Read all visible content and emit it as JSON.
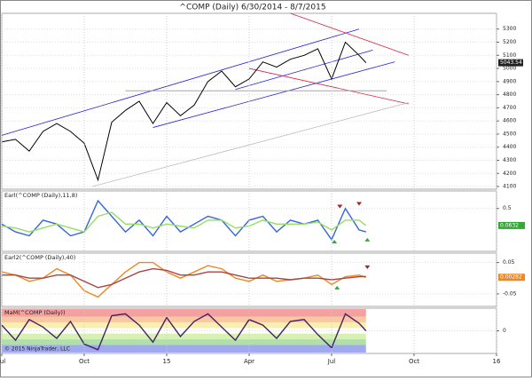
{
  "copyright": "© 2015 NinjaTrader, LLC",
  "chart_data": [
    {
      "type": "line",
      "title": "^COMP (Daily)  6/30/2014 - 8/7/2015",
      "x": [
        0,
        0.5,
        1,
        1.5,
        2,
        2.5,
        3,
        3.5,
        4,
        4.5,
        5,
        5.5,
        6,
        6.5,
        7,
        7.5,
        8,
        8.5,
        9,
        9.5,
        10,
        10.5,
        11,
        11.5,
        12,
        12.5,
        13,
        13.25
      ],
      "series": [
        {
          "color": "#000000",
          "values": [
            4440,
            4460,
            4370,
            4520,
            4580,
            4520,
            4430,
            4150,
            4590,
            4680,
            4750,
            4580,
            4740,
            4640,
            4720,
            4900,
            4980,
            4860,
            4920,
            5050,
            5010,
            5070,
            5100,
            5150,
            4920,
            5200,
            5100,
            5043.54
          ]
        }
      ],
      "last_value": 5043.54,
      "xlim": [
        0,
        18
      ],
      "ylim": [
        4080,
        5420
      ],
      "yticks": [
        4100,
        4200,
        4300,
        4400,
        4500,
        4600,
        4700,
        4800,
        4900,
        5000,
        5100,
        5200,
        5300
      ],
      "trendlines": [
        {
          "x": [
            0,
            13
          ],
          "y": [
            4490,
            5300
          ],
          "color": "#2222dd"
        },
        {
          "x": [
            5.5,
            14.3
          ],
          "y": [
            4550,
            5050
          ],
          "color": "#2222dd"
        },
        {
          "x": [
            8.5,
            13.5
          ],
          "y": [
            4840,
            5140
          ],
          "color": "#2222dd"
        },
        {
          "x": [
            10.5,
            14.8
          ],
          "y": [
            5420,
            5100
          ],
          "color": "#dd2244"
        },
        {
          "x": [
            9,
            14.8
          ],
          "y": [
            5000,
            4730
          ],
          "color": "#dd2244"
        },
        {
          "x": [
            4.5,
            14
          ],
          "y": [
            4830,
            4830
          ],
          "color": "#999999"
        },
        {
          "x": [
            3.3,
            14.8
          ],
          "y": [
            4100,
            4740
          ],
          "color": "#bbbbbb"
        }
      ]
    },
    {
      "type": "line",
      "title": "Earl(^COMP (Daily),11,8)",
      "x": [
        0,
        0.5,
        1,
        1.5,
        2,
        2.5,
        3,
        3.5,
        4,
        4.5,
        5,
        5.5,
        6,
        6.5,
        7,
        7.5,
        8,
        8.5,
        9,
        9.5,
        10,
        10.5,
        11,
        11.5,
        12,
        12.5,
        13,
        13.25
      ],
      "series": [
        {
          "color": "#3366dd",
          "values": [
            0.1,
            -0.1,
            -0.2,
            0.2,
            0.1,
            -0.2,
            -0.1,
            0.7,
            0.3,
            -0.1,
            0.2,
            -0.2,
            0.3,
            -0.1,
            0.1,
            0.3,
            0.2,
            -0.2,
            0.2,
            0.3,
            -0.1,
            0.2,
            0.1,
            0.2,
            -0.3,
            0.5,
            -0.05,
            -0.1
          ]
        },
        {
          "color": "#99dd66",
          "values": [
            0.05,
            0,
            -0.1,
            0,
            0.1,
            0,
            -0.1,
            0.3,
            0.4,
            0.1,
            0.1,
            0,
            0.1,
            0.05,
            0,
            0.2,
            0.2,
            0,
            0.05,
            0.2,
            0.1,
            0.1,
            0.1,
            0.15,
            -0.05,
            0.2,
            0.2,
            0.0632
          ]
        }
      ],
      "last_value": 0.0632,
      "markers": [
        {
          "x": 12.3,
          "y": 0.55,
          "color": "#aa2222",
          "dir": "down"
        },
        {
          "x": 13,
          "y": 0.62,
          "color": "#aa2222",
          "dir": "down"
        },
        {
          "x": 12.1,
          "y": -0.35,
          "color": "#33aa33",
          "dir": "up"
        },
        {
          "x": 13.3,
          "y": -0.3,
          "color": "#33aa33",
          "dir": "up"
        }
      ],
      "xlim": [
        0,
        18
      ],
      "ylim": [
        -0.6,
        0.95
      ],
      "yticks": [
        0.5
      ]
    },
    {
      "type": "line",
      "title": "Earl2(^COMP (Daily),40)",
      "x": [
        0,
        0.5,
        1,
        1.5,
        2,
        2.5,
        3,
        3.5,
        4,
        4.5,
        5,
        5.5,
        6,
        6.5,
        7,
        7.5,
        8,
        8.5,
        9,
        9.5,
        10,
        10.5,
        11,
        11.5,
        12,
        12.5,
        13,
        13.25
      ],
      "series": [
        {
          "color": "#ee8822",
          "values": [
            0.02,
            0.01,
            -0.01,
            0,
            0.03,
            0.01,
            -0.04,
            -0.06,
            -0.02,
            0.02,
            0.05,
            0.05,
            0.02,
            0,
            0.02,
            0.04,
            0.03,
            0,
            -0.01,
            0.01,
            -0.01,
            -0.005,
            0,
            0.01,
            -0.02,
            0.005,
            0.01,
            0.00282
          ]
        },
        {
          "color": "#aa4444",
          "values": [
            0.01,
            0.01,
            0,
            0,
            0.01,
            0.01,
            -0.01,
            -0.03,
            -0.02,
            0,
            0.02,
            0.03,
            0.025,
            0.01,
            0.01,
            0.02,
            0.02,
            0.01,
            0,
            0,
            0,
            -0.005,
            0,
            0,
            -0.005,
            0,
            0.005,
            0.005
          ]
        }
      ],
      "last_value": 0.00282,
      "markers": [
        {
          "x": 12.2,
          "y": -0.03,
          "color": "#33aa33",
          "dir": "up"
        },
        {
          "x": 13.3,
          "y": 0.035,
          "color": "#aa2222",
          "dir": "down"
        }
      ],
      "xlim": [
        0,
        18
      ],
      "ylim": [
        -0.09,
        0.08
      ],
      "yticks": [
        0.05,
        -0.05
      ]
    },
    {
      "type": "line",
      "title": "MaM(^COMP (Daily))",
      "x": [
        0,
        0.5,
        1,
        1.5,
        2,
        2.5,
        3,
        3.5,
        4,
        4.5,
        5,
        5.5,
        6,
        6.5,
        7,
        7.5,
        8,
        8.5,
        9,
        9.5,
        10,
        10.5,
        11,
        11.5,
        12,
        12.5,
        13,
        13.25
      ],
      "series": [
        {
          "color": "#442266",
          "values": [
            0.3,
            -0.5,
            0.6,
            0.2,
            -0.4,
            0.5,
            -0.7,
            -1.0,
            0.8,
            0.9,
            0.3,
            -0.6,
            0.7,
            -0.3,
            0.5,
            0.9,
            0.2,
            -0.5,
            0.6,
            0.3,
            -0.4,
            0.5,
            0.6,
            -0.2,
            -0.9,
            0.9,
            0.4,
            0
          ]
        }
      ],
      "bands": [
        {
          "from": 0.75,
          "to": 1.15,
          "color": "#f4a0a0"
        },
        {
          "from": 0.45,
          "to": 0.75,
          "color": "#f8c8a0"
        },
        {
          "from": 0.15,
          "to": 0.45,
          "color": "#f8f0b0"
        },
        {
          "from": -0.45,
          "to": -0.15,
          "color": "#d8f0b0"
        },
        {
          "from": -0.75,
          "to": -0.45,
          "color": "#b0e0a8"
        },
        {
          "from": -1.15,
          "to": -0.75,
          "color": "#a0a8f0"
        }
      ],
      "xlim": [
        0,
        18
      ],
      "ylim": [
        -1.2,
        1.2
      ],
      "yticks": [
        0
      ],
      "xticks": [
        {
          "value": 0,
          "label": "Jul"
        },
        {
          "value": 3,
          "label": "Oct"
        },
        {
          "value": 6,
          "label": "15"
        },
        {
          "value": 9,
          "label": "Apr"
        },
        {
          "value": 12,
          "label": "Jul"
        },
        {
          "value": 15,
          "label": "Oct"
        },
        {
          "value": 18,
          "label": "16"
        }
      ]
    }
  ]
}
